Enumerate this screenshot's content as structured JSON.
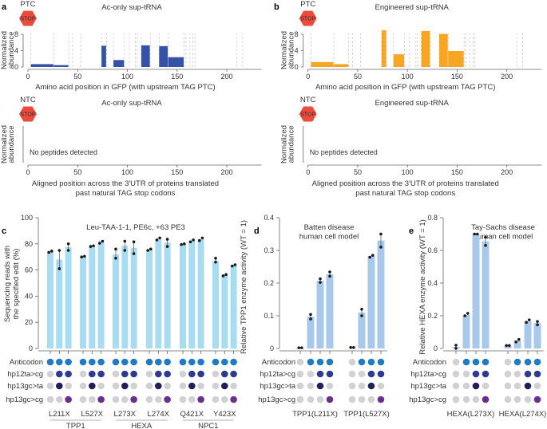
{
  "colors": {
    "ac_bar": "#3551a8",
    "eng_bar": "#f6a623",
    "c_bar": "#a8dcf2",
    "de_bar": "#a9c9ec",
    "stop": "#ea4b3c",
    "grid": "#c8c8c8",
    "point": "#1a1a1a",
    "dot_gray": "#d1d1d4",
    "dot_anticodon": "#1f7cc4",
    "dot_hp12": "#2c3a94",
    "dot_hp13ta": "#1f1f5c",
    "dot_hp13cg": "#6b2d92"
  },
  "panels": {
    "a": "a",
    "b": "b",
    "c": "c",
    "d": "d",
    "e": "e"
  },
  "stop_text": "STOP",
  "chart_data": [
    {
      "id": "a_ptc",
      "type": "bar",
      "title": "Ac-only sup-tRNA",
      "marker": "PTC",
      "xlabel": "Amino acid position in GFP (with upstream TAG PTC)",
      "ylabel": "Normalized abundance",
      "xlim": [
        0,
        235
      ],
      "ylim": [
        0,
        9
      ],
      "xticks": [
        0,
        50,
        100,
        150,
        200
      ],
      "yticks": [
        0,
        4,
        8
      ],
      "bins": [
        [
          3,
          26,
          0.7
        ],
        [
          26,
          41,
          0.45
        ],
        [
          74,
          79,
          5.2
        ],
        [
          86,
          97,
          1.7
        ],
        [
          114,
          123,
          5.3
        ],
        [
          132,
          141,
          5.1
        ],
        [
          141,
          157,
          2.4
        ]
      ],
      "dashed_lines": [
        3,
        26,
        41,
        45,
        53,
        74,
        79,
        86,
        97,
        102,
        108,
        110,
        114,
        123,
        132,
        141,
        157,
        159,
        163,
        166,
        168,
        210,
        216
      ]
    },
    {
      "id": "b_ptc",
      "type": "bar",
      "title": "Engineered sup-tRNA",
      "marker": "PTC",
      "xlabel": "Amino acid position in GFP (with upstream TAG PTC)",
      "ylabel": "Normalized abundance",
      "xlim": [
        0,
        235
      ],
      "ylim": [
        0,
        9
      ],
      "xticks": [
        0,
        50,
        100,
        150,
        200
      ],
      "yticks": [
        0,
        4,
        8
      ],
      "bins": [
        [
          3,
          26,
          1.2
        ],
        [
          26,
          41,
          0.7
        ],
        [
          74,
          79,
          9.0
        ],
        [
          86,
          97,
          3.1
        ],
        [
          114,
          123,
          8.8
        ],
        [
          132,
          141,
          8.1
        ],
        [
          141,
          157,
          3.9
        ]
      ],
      "dashed_lines": [
        3,
        26,
        41,
        45,
        53,
        74,
        79,
        86,
        97,
        102,
        108,
        110,
        114,
        123,
        132,
        141,
        157,
        159,
        163,
        166,
        168,
        210,
        216
      ]
    },
    {
      "id": "a_ntc",
      "type": "bar",
      "title": "Ac-only sup-tRNA",
      "marker": "NTC",
      "xlabel": "Aligned position across the 3′UTR of proteins translated past natural TAG stop codons",
      "ylabel": "Normalized abundance",
      "xlim": [
        0,
        235
      ],
      "xticks": [
        0,
        50,
        100,
        150,
        200
      ],
      "annotation": "No peptides detected",
      "bins": []
    },
    {
      "id": "b_ntc",
      "type": "bar",
      "title": "Engineered sup-tRNA",
      "marker": "NTC",
      "xlabel": "Aligned position across the 3′UTR of proteins translated past natural TAG stop codons",
      "ylabel": "Normalized abundance",
      "xlim": [
        0,
        235
      ],
      "xticks": [
        0,
        50,
        100,
        150,
        200
      ],
      "annotation": "No peptides detected",
      "bins": []
    },
    {
      "id": "c",
      "type": "bar",
      "title": "Leu-TAA-1-1, PE6c, +63 PE3",
      "ylabel": "Sequencing reads with the specified edit (%)",
      "ylim": [
        0,
        100
      ],
      "yticks": [
        0,
        20,
        40,
        60,
        80,
        100
      ],
      "groups": [
        {
          "label": "L211X",
          "gene": "TPP1",
          "values": [
            74,
            68,
            77.5
          ],
          "points": [
            [
              73.5,
              74.5
            ],
            [
              61,
              75
            ],
            [
              75,
              80
            ]
          ]
        },
        {
          "label": "L527X",
          "gene": "TPP1",
          "values": [
            70,
            78,
            81
          ],
          "points": [
            [
              70,
              70.5
            ],
            [
              78,
              78.5
            ],
            [
              80.5,
              82
            ]
          ]
        },
        {
          "label": "L273X",
          "gene": "HEXA",
          "values": [
            72,
            78.5,
            77
          ],
          "points": [
            [
              69,
              76
            ],
            [
              75,
              82
            ],
            [
              72.5,
              81.5
            ]
          ]
        },
        {
          "label": "L274X",
          "gene": "HEXA",
          "values": [
            75.5,
            83.5,
            81
          ],
          "points": [
            [
              75,
              76
            ],
            [
              83,
              84.5
            ],
            [
              78,
              83.5
            ]
          ]
        },
        {
          "label": "Q421X",
          "gene": "NPC1",
          "values": [
            80,
            82.5,
            83.5
          ],
          "points": [
            [
              79.5,
              80
            ],
            [
              81.5,
              83
            ],
            [
              82.5,
              84.5
            ]
          ]
        },
        {
          "label": "Y423X",
          "gene": "NPC1",
          "values": [
            67,
            56,
            63.5
          ],
          "points": [
            [
              66,
              69
            ],
            [
              55.5,
              56.5
            ],
            [
              63,
              64
            ]
          ]
        }
      ],
      "genes": [
        "TPP1",
        "HEXA",
        "NPC1"
      ],
      "matrix_rows": [
        "Anticodon",
        "hp12ta>cg",
        "hp13gc>ta",
        "hp13gc>cg"
      ],
      "matrix": [
        [
          1,
          1,
          1
        ],
        [
          0,
          1,
          1
        ],
        [
          0,
          1,
          0
        ],
        [
          0,
          0,
          1
        ]
      ]
    },
    {
      "id": "d",
      "type": "bar",
      "title": "Batten disease human cell model",
      "ylabel": "Relative TPP1 enzyme activity (WT = 1)",
      "ylim": [
        0,
        0.4
      ],
      "yticks": [
        0,
        0.1,
        0.2,
        0.3,
        0.4
      ],
      "groups": [
        {
          "label": "TPP1(L211X)",
          "values": [
            0.002,
            0.097,
            0.207,
            0.227
          ],
          "points": [
            [
              0.002,
              0.002
            ],
            [
              0.09,
              0.104
            ],
            [
              0.202,
              0.213
            ],
            [
              0.221,
              0.234
            ]
          ]
        },
        {
          "label": "TPP1(L527X)",
          "values": [
            0.003,
            0.11,
            0.282,
            0.33
          ],
          "points": [
            [
              0.003,
              0.003
            ],
            [
              0.1,
              0.12
            ],
            [
              0.279,
              0.285
            ],
            [
              0.31,
              0.35
            ]
          ]
        }
      ],
      "matrix_rows": [
        "Anticodon",
        "hp12ta>cg",
        "hp13gc>ta",
        "hp13gc>cg"
      ],
      "matrix": [
        [
          0,
          1,
          1,
          1
        ],
        [
          0,
          0,
          1,
          1
        ],
        [
          0,
          0,
          1,
          0
        ],
        [
          0,
          0,
          0,
          1
        ]
      ]
    },
    {
      "id": "e",
      "type": "bar",
      "title": "Tay-Sachs disease human cell model",
      "ylabel": "Relative HEXA enzyme activity (WT = 1)",
      "ylim": [
        0,
        0.8
      ],
      "yticks": [
        0,
        0.2,
        0.4,
        0.6,
        0.8
      ],
      "groups": [
        {
          "label": "HEXA(L273X)",
          "values": [
            0.01,
            0.205,
            0.7,
            0.655
          ],
          "points": [
            [
              0,
              0.02
            ],
            [
              0.2,
              0.215
            ],
            [
              0.7,
              0.7
            ],
            [
              0.63,
              0.68
            ]
          ]
        },
        {
          "label": "HEXA(L274X)",
          "values": [
            0.018,
            0.048,
            0.165,
            0.155
          ],
          "points": [
            [
              0.018,
              0.018
            ],
            [
              0.04,
              0.055
            ],
            [
              0.16,
              0.175
            ],
            [
              0.145,
              0.165
            ]
          ]
        }
      ],
      "matrix_rows": [
        "Anticodon",
        "hp12ta>cg",
        "hp13gc>ta",
        "hp13gc>cg"
      ],
      "matrix": [
        [
          0,
          1,
          1,
          1
        ],
        [
          0,
          0,
          1,
          1
        ],
        [
          0,
          0,
          1,
          0
        ],
        [
          0,
          0,
          0,
          1
        ]
      ]
    }
  ]
}
